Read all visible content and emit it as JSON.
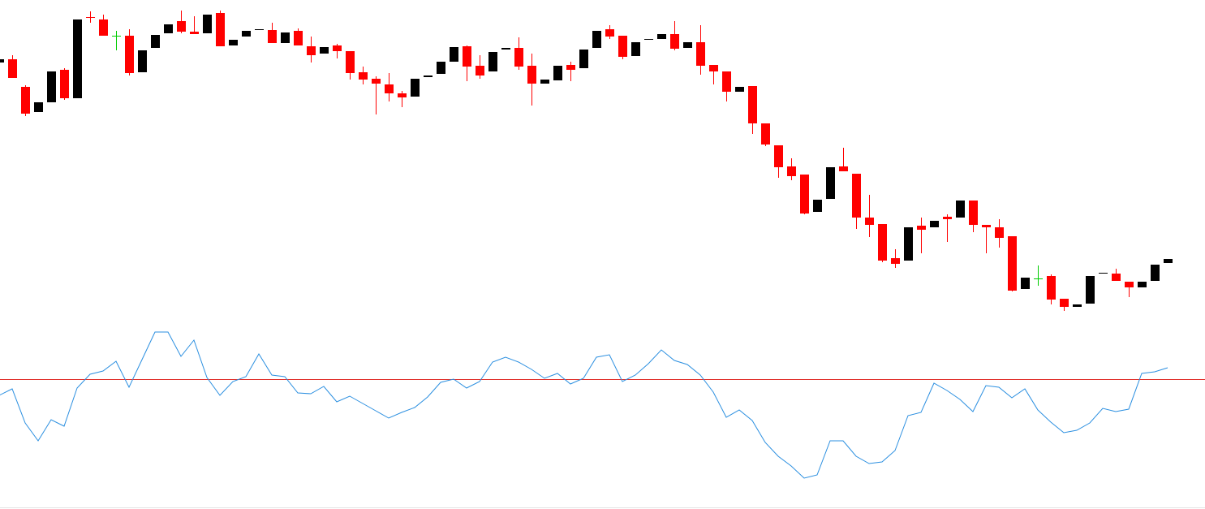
{
  "chart_data": {
    "type": "candlestick",
    "ylim": [
      0,
      400
    ],
    "up_color": "#000000",
    "down_color": "#ff0000",
    "doji_color": "#00cc00",
    "open": [
      323,
      327,
      293,
      262,
      274,
      314,
      279,
      379,
      376,
      356,
      356,
      311,
      341,
      359,
      374,
      361,
      359,
      384,
      344,
      355,
      363,
      363,
      347,
      362,
      343,
      334,
      344,
      337,
      311,
      303,
      296,
      285,
      281,
      305,
      309,
      324,
      343,
      319,
      312,
      339,
      341,
      319,
      297,
      301,
      320,
      316,
      341,
      364,
      356,
      331,
      351,
      352,
      358,
      341,
      348,
      320,
      312,
      287,
      294,
      248,
      221,
      195,
      185,
      139,
      155,
      195,
      186,
      132,
      124,
      82,
      79,
      122,
      120,
      133,
      132,
      153,
      123,
      120,
      109,
      44,
      57,
      60,
      32,
      22,
      26,
      63,
      63,
      53,
      46,
      54,
      76
    ],
    "high": [
      330,
      332,
      295,
      274,
      312,
      316,
      376,
      386,
      382,
      362,
      364,
      338,
      357,
      370,
      387,
      380,
      382,
      387,
      351,
      362,
      364,
      372,
      360,
      365,
      355,
      342,
      346,
      337,
      318,
      306,
      310,
      288,
      303,
      307,
      324,
      342,
      344,
      332,
      336,
      341,
      354,
      334,
      302,
      319,
      324,
      339,
      362,
      369,
      356,
      348,
      352,
      358,
      374,
      348,
      369,
      320,
      312,
      293,
      294,
      248,
      221,
      205,
      185,
      154,
      194,
      218,
      186,
      160,
      124,
      93,
      120,
      132,
      128,
      136,
      153,
      153,
      123,
      130,
      109,
      58,
      73,
      62,
      32,
      25,
      60,
      64,
      69,
      53,
      53,
      74,
      81
    ],
    "low": [
      323,
      304,
      257,
      262,
      274,
      277,
      279,
      372,
      356,
      338,
      307,
      311,
      341,
      359,
      359,
      358,
      359,
      343,
      344,
      355,
      363,
      347,
      347,
      344,
      323,
      334,
      328,
      302,
      296,
      259,
      275,
      268,
      281,
      305,
      309,
      324,
      300,
      303,
      312,
      339,
      314,
      270,
      297,
      301,
      300,
      316,
      341,
      352,
      327,
      331,
      351,
      352,
      338,
      341,
      308,
      296,
      275,
      287,
      235,
      220,
      181,
      178,
      136,
      139,
      155,
      189,
      118,
      108,
      77,
      70,
      79,
      88,
      120,
      102,
      132,
      114,
      88,
      95,
      41,
      44,
      48,
      25,
      17,
      22,
      26,
      63,
      54,
      34,
      46,
      54,
      76
    ],
    "close": [
      327,
      304,
      260,
      274,
      312,
      279,
      376,
      378,
      356,
      356,
      310,
      338,
      357,
      370,
      361,
      358,
      382,
      343,
      351,
      362,
      364,
      347,
      360,
      344,
      332,
      342,
      337,
      310,
      302,
      297,
      285,
      280,
      303,
      307,
      324,
      342,
      318,
      307,
      336,
      341,
      318,
      297,
      302,
      319,
      314,
      339,
      362,
      355,
      330,
      348,
      352,
      358,
      340,
      348,
      319,
      312,
      287,
      293,
      248,
      222,
      194,
      183,
      137,
      154,
      194,
      189,
      132,
      123,
      79,
      75,
      120,
      117,
      128,
      130,
      153,
      123,
      120,
      107,
      42,
      58,
      57,
      31,
      22,
      25,
      60,
      64,
      54,
      46,
      53,
      74,
      81
    ],
    "oscillator": {
      "type": "line",
      "color": "#2b8fe0",
      "ylim": [
        -160,
        70
      ],
      "level": 0,
      "level_color": "#e0302a",
      "values": [
        -20,
        -12,
        -54,
        -76,
        -50,
        -58,
        -11,
        6,
        10,
        22,
        -10,
        24,
        58,
        58,
        28,
        48,
        2,
        -20,
        -3,
        3,
        31,
        5,
        3,
        -17,
        -18,
        -9,
        -28,
        -21,
        -30,
        -39,
        -48,
        -41,
        -35,
        -22,
        -4,
        0,
        -11,
        -3,
        21,
        27,
        21,
        12,
        1,
        7,
        -6,
        1,
        27,
        30,
        -3,
        5,
        19,
        36,
        23,
        18,
        5,
        -16,
        -47,
        -38,
        -51,
        -78,
        -95,
        -107,
        -122,
        -118,
        -76,
        -76,
        -95,
        -104,
        -102,
        -88,
        -45,
        -41,
        -5,
        -14,
        -25,
        -40,
        -8,
        -10,
        -23,
        -12,
        -38,
        -53,
        -66,
        -63,
        -54,
        -36,
        -40,
        -37,
        7,
        9,
        14
      ]
    }
  }
}
